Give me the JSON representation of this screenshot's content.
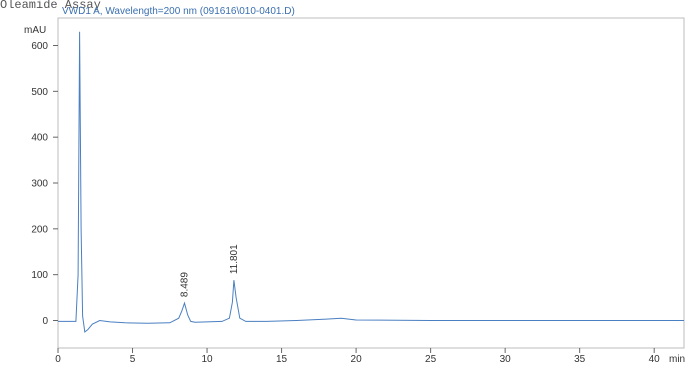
{
  "header": {
    "top_text": "Oleamide Assay"
  },
  "chart_data": {
    "type": "line",
    "series_label": "VWD1 A, Wavelength=200 nm (091616\\010-0401.D)",
    "ylabel": "mAU",
    "xlabel": "min",
    "xlim": [
      0,
      42
    ],
    "ylim": [
      -60,
      660
    ],
    "x_ticks": [
      0,
      5,
      10,
      15,
      20,
      25,
      30,
      35,
      40
    ],
    "y_ticks": [
      0,
      100,
      200,
      300,
      400,
      500,
      600
    ],
    "peaks": [
      {
        "label": "8.489",
        "x": 8.489,
        "y": 38
      },
      {
        "label": "11.801",
        "x": 11.801,
        "y": 88
      }
    ],
    "series": [
      {
        "x": [
          0,
          1.2,
          1.35,
          1.45,
          1.55,
          1.65,
          1.8,
          2.0,
          2.3,
          2.8,
          3.5,
          4.5,
          6,
          7.5,
          8.1,
          8.3,
          8.489,
          8.7,
          8.9,
          9.2,
          10,
          11,
          11.5,
          11.7,
          11.801,
          11.95,
          12.2,
          12.6,
          14,
          16,
          18,
          19,
          20,
          25,
          30,
          35,
          40,
          42
        ],
        "y": [
          -2,
          -2,
          100,
          630,
          200,
          10,
          -25,
          -20,
          -8,
          0,
          -3,
          -5,
          -6,
          -5,
          5,
          20,
          38,
          12,
          -2,
          -4,
          -3,
          -2,
          5,
          40,
          88,
          50,
          5,
          -2,
          -2,
          0,
          3,
          5,
          1,
          0,
          0,
          0,
          0,
          0
        ]
      }
    ],
    "color": "#4a7fc1"
  }
}
